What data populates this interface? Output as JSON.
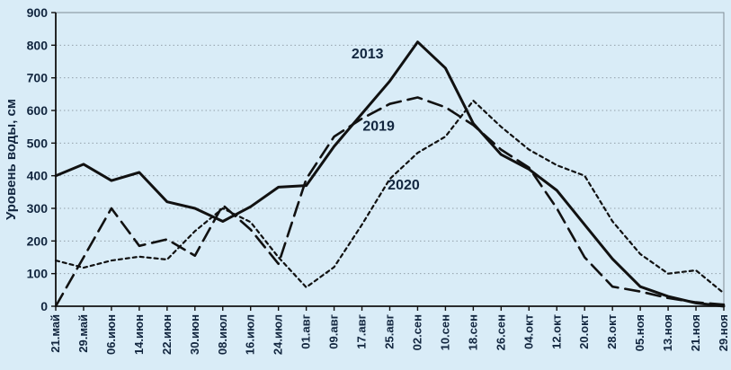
{
  "chart": {
    "background_color": "#d9ecf7",
    "text_color": "#12263f",
    "grid_color": "#93a0aa",
    "axis_color": "#111111"
  },
  "chart_data": {
    "type": "line",
    "title": "",
    "xlabel": "",
    "ylabel": "Уровень воды, см",
    "ylim": [
      0,
      900
    ],
    "ytick_step": 100,
    "grid": "horizontal-dotted",
    "legend_position": "inline-annotations",
    "categories": [
      "21.май",
      "29.май",
      "06.июн",
      "14.июн",
      "22.июн",
      "30.июн",
      "08.июл",
      "16.июл",
      "24.июл",
      "01.авг",
      "09.авг",
      "17.авг",
      "25.авг",
      "02.сен",
      "10.сен",
      "18.сен",
      "26.сен",
      "04.окт",
      "12.окт",
      "20.окт",
      "28.окт",
      "05.ноя",
      "13.ноя",
      "21.ноя",
      "29.ноя"
    ],
    "series": [
      {
        "name": "2013",
        "line_style": "solid",
        "color": "#111111",
        "values": [
          400,
          435,
          385,
          410,
          320,
          300,
          260,
          305,
          365,
          370,
          490,
          590,
          690,
          810,
          730,
          560,
          465,
          420,
          355,
          250,
          145,
          60,
          30,
          10,
          0
        ]
      },
      {
        "name": "2019",
        "line_style": "long-dash",
        "color": "#111111",
        "values": [
          0,
          150,
          300,
          185,
          205,
          155,
          310,
          235,
          130,
          390,
          520,
          575,
          620,
          640,
          610,
          555,
          480,
          425,
          300,
          150,
          60,
          45,
          25,
          12,
          5
        ]
      },
      {
        "name": "2020",
        "line_style": "short-dash",
        "color": "#111111",
        "values": [
          140,
          118,
          140,
          152,
          143,
          230,
          300,
          258,
          150,
          58,
          120,
          250,
          390,
          470,
          520,
          630,
          550,
          480,
          432,
          400,
          260,
          160,
          100,
          110,
          40
        ]
      }
    ],
    "annotations": [
      {
        "text": "2013",
        "x_index": 11.2,
        "y_value": 760
      },
      {
        "text": "2019",
        "x_index": 11.6,
        "y_value": 538
      },
      {
        "text": "2020",
        "x_index": 12.5,
        "y_value": 358
      }
    ]
  }
}
